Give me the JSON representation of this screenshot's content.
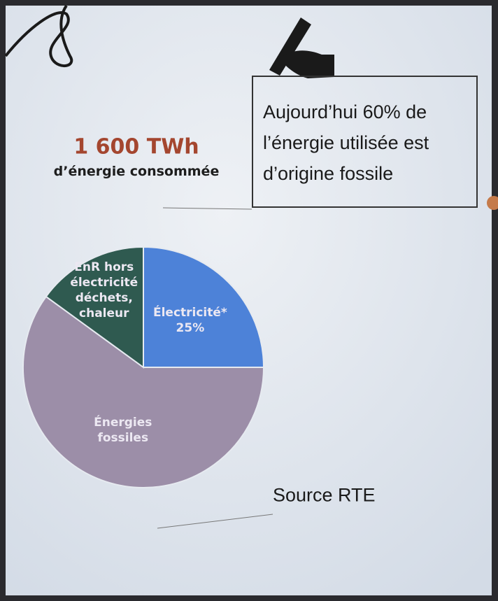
{
  "chart_data": {
    "type": "pie",
    "title": "1 600 TWh",
    "subtitle": "d’énergie consommée",
    "annotation": "Aujourd’hui 60% de l’énergie utilisée est d’origine fossile",
    "source": "Source RTE",
    "categories": [
      "Électricité*",
      "Énergies fossiles",
      "EnR hors électricité déchets, chaleur"
    ],
    "values": [
      25,
      60,
      15
    ],
    "value_labels": [
      "25%",
      null,
      null
    ],
    "colors": [
      "#4d82d8",
      "#9c8ea8",
      "#2f5a50"
    ]
  }
}
